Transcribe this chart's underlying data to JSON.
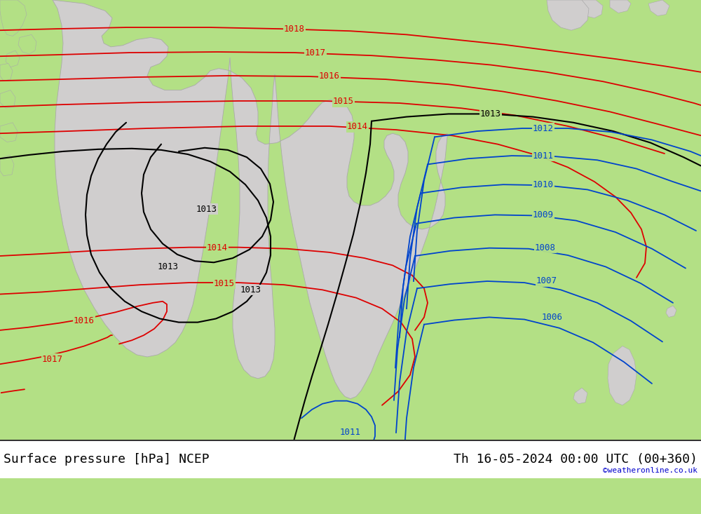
{
  "title_left": "Surface pressure [hPa] NCEP",
  "title_right": "Th 16-05-2024 00:00 UTC (00+360)",
  "watermark": "©weatheronline.co.uk",
  "bg_green": "#b3e085",
  "land_grey": "#d0cece",
  "border_grey": "#aaaaaa",
  "red": "#dd0000",
  "black": "#000000",
  "blue": "#0044cc",
  "white": "#ffffff",
  "title_fontsize": 13,
  "label_fontsize": 9,
  "watermark_fontsize": 8
}
